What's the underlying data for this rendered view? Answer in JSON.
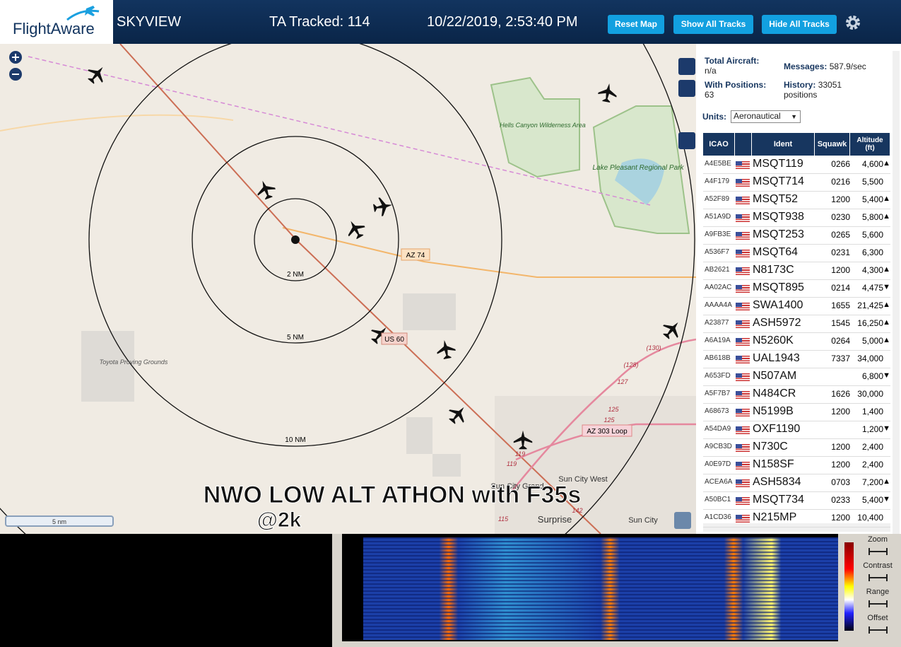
{
  "header": {
    "logo": "FlightAware",
    "app": "SKYVIEW",
    "tracked": "TA Tracked: 114",
    "datetime": "10/22/2019, 2:53:40 PM",
    "buttons": [
      "Reset Map",
      "Show All Tracks",
      "Hide All Tracks"
    ]
  },
  "map": {
    "rings": [
      "2 NM",
      "5 NM",
      "10 NM"
    ],
    "roads": [
      "AZ 74",
      "US 60",
      "AZ 303 Loop"
    ],
    "places": [
      "Hells Canyon Wilderness Area",
      "Lake Pleasant Regional Park",
      "Toyota Proving Grounds",
      "Sun City West",
      "Surprise",
      "Sun City",
      "Sun City Grand"
    ],
    "route_numbers": [
      "(130)",
      "(128)",
      "127",
      "125",
      "125",
      "119",
      "119",
      "115",
      "142"
    ],
    "scale": "5 nm",
    "caption": [
      "NWO LOW ALT ATHON with F35s",
      "@2k"
    ]
  },
  "sidebar": {
    "stats": [
      {
        "label": "Total Aircraft:",
        "value": "n/a"
      },
      {
        "label": "Messages:",
        "value": "587.9/sec"
      },
      {
        "label": "With Positions:",
        "value": "63"
      },
      {
        "label": "History:",
        "value": "33051 positions"
      }
    ],
    "units_label": "Units:",
    "units_value": "Aeronautical",
    "columns": [
      "ICAO",
      "Ident",
      "Squawk",
      "Altitude (ft)"
    ],
    "rows": [
      {
        "icao": "A4E5BE",
        "ident": "MSQT119",
        "squawk": "0266",
        "altitude": "4,600",
        "trend": "▲"
      },
      {
        "icao": "A4F179",
        "ident": "MSQT714",
        "squawk": "0216",
        "altitude": "5,500"
      },
      {
        "icao": "A52F89",
        "ident": "MSQT52",
        "squawk": "1200",
        "altitude": "5,400",
        "trend": "▲"
      },
      {
        "icao": "A51A9D",
        "ident": "MSQT938",
        "squawk": "0230",
        "altitude": "5,800",
        "trend": "▲"
      },
      {
        "icao": "A9FB3E",
        "ident": "MSQT253",
        "squawk": "0265",
        "altitude": "5,600"
      },
      {
        "icao": "A536F7",
        "ident": "MSQT64",
        "squawk": "0231",
        "altitude": "6,300"
      },
      {
        "icao": "AB2621",
        "ident": "N8173C",
        "squawk": "1200",
        "altitude": "4,300",
        "trend": "▲"
      },
      {
        "icao": "AA02AC",
        "ident": "MSQT895",
        "squawk": "0214",
        "altitude": "4,475",
        "trend": "▼"
      },
      {
        "icao": "AAAA4A",
        "ident": "SWA1400",
        "squawk": "1655",
        "altitude": "21,425",
        "trend": "▲"
      },
      {
        "icao": "A23877",
        "ident": "ASH5972",
        "squawk": "1545",
        "altitude": "16,250",
        "trend": "▲"
      },
      {
        "icao": "A6A19A",
        "ident": "N5260K",
        "squawk": "0264",
        "altitude": "5,000",
        "trend": "▲"
      },
      {
        "icao": "AB618B",
        "ident": "UAL1943",
        "squawk": "7337",
        "altitude": "34,000"
      },
      {
        "icao": "A653FD",
        "ident": "N507AM",
        "altitude": "6,800",
        "trend": "▼"
      },
      {
        "icao": "A5F7B7",
        "ident": "N484CR",
        "squawk": "1626",
        "altitude": "30,000"
      },
      {
        "icao": "A68673",
        "ident": "N5199B",
        "squawk": "1200",
        "altitude": "1,400"
      },
      {
        "icao": "A54DA9",
        "ident": "OXF1190",
        "altitude": "1,200",
        "trend": "▼"
      },
      {
        "icao": "A9CB3D",
        "ident": "N730C",
        "squawk": "1200",
        "altitude": "2,400"
      },
      {
        "icao": "A0E97D",
        "ident": "N158SF",
        "squawk": "1200",
        "altitude": "2,400"
      },
      {
        "icao": "ACEA6A",
        "ident": "ASH5834",
        "squawk": "0703",
        "altitude": "7,200",
        "trend": "▲"
      },
      {
        "icao": "A50BC1",
        "ident": "MSQT734",
        "squawk": "0233",
        "altitude": "5,400",
        "trend": "▼"
      },
      {
        "icao": "A1CD36",
        "ident": "N215MP",
        "squawk": "1200",
        "altitude": "10,400"
      }
    ]
  },
  "spectrum": {
    "controls": [
      "Zoom",
      "Contrast",
      "Range",
      "Offset"
    ]
  }
}
